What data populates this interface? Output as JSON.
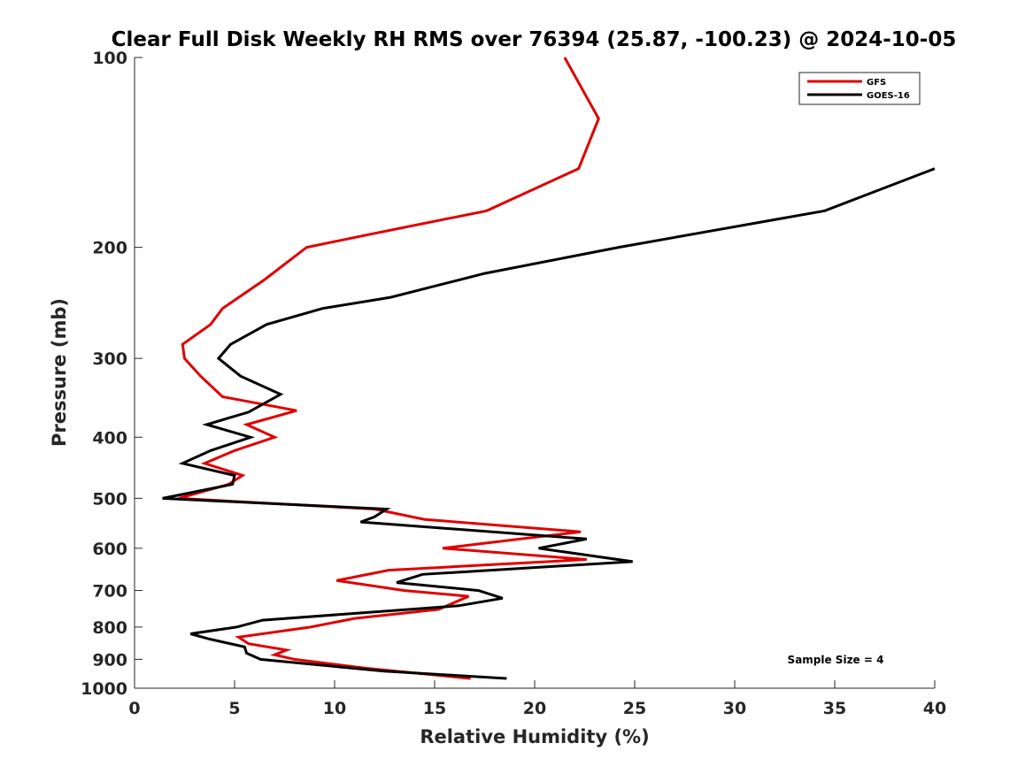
{
  "chart_data": {
    "type": "line",
    "title": "Clear Full Disk Weekly RH RMS over 76394 (25.87, -100.23) @ 2024-10-05",
    "xlabel": "Relative Humidity (%)",
    "ylabel": "Pressure (mb)",
    "xlim": [
      0,
      40
    ],
    "ylim": [
      100,
      1000
    ],
    "yscale": "log",
    "y_reversed": true,
    "xticks": [
      0,
      5,
      10,
      15,
      20,
      25,
      30,
      35,
      40
    ],
    "yticks": [
      100,
      200,
      300,
      400,
      500,
      600,
      700,
      800,
      900,
      1000
    ],
    "grid": false,
    "legend_position": "top-right",
    "annotation": "Sample Size = 4",
    "series": [
      {
        "name": "GFS",
        "color": "#e00000",
        "points": [
          [
            21.5,
            100
          ],
          [
            23.2,
            125
          ],
          [
            22.2,
            150
          ],
          [
            17.6,
            175
          ],
          [
            12.0,
            190
          ],
          [
            8.6,
            200
          ],
          [
            6.5,
            225
          ],
          [
            4.4,
            250
          ],
          [
            3.8,
            265
          ],
          [
            2.4,
            285
          ],
          [
            2.5,
            300
          ],
          [
            3.3,
            320
          ],
          [
            4.4,
            345
          ],
          [
            8.1,
            363
          ],
          [
            5.6,
            382
          ],
          [
            7.0,
            400
          ],
          [
            5.0,
            420
          ],
          [
            3.5,
            440
          ],
          [
            5.4,
            460
          ],
          [
            4.7,
            475
          ],
          [
            2.2,
            500
          ],
          [
            12.0,
            520
          ],
          [
            14.5,
            540
          ],
          [
            22.3,
            565
          ],
          [
            19.3,
            580
          ],
          [
            15.4,
            600
          ],
          [
            22.6,
            625
          ],
          [
            12.7,
            650
          ],
          [
            10.1,
            675
          ],
          [
            13.5,
            700
          ],
          [
            16.7,
            715
          ],
          [
            15.2,
            750
          ],
          [
            11.0,
            775
          ],
          [
            8.8,
            800
          ],
          [
            5.2,
            830
          ],
          [
            5.7,
            850
          ],
          [
            7.6,
            870
          ],
          [
            7.0,
            885
          ],
          [
            8.0,
            900
          ],
          [
            11.6,
            930
          ],
          [
            16.8,
            965
          ]
        ]
      },
      {
        "name": "GOES-16",
        "color": "#000000",
        "points": [
          [
            40.0,
            150
          ],
          [
            34.5,
            175
          ],
          [
            24.2,
            200
          ],
          [
            17.5,
            220
          ],
          [
            12.8,
            240
          ],
          [
            9.4,
            250
          ],
          [
            6.6,
            265
          ],
          [
            4.8,
            285
          ],
          [
            4.2,
            300
          ],
          [
            5.3,
            320
          ],
          [
            7.3,
            342
          ],
          [
            5.7,
            365
          ],
          [
            3.6,
            382
          ],
          [
            5.8,
            400
          ],
          [
            3.8,
            420
          ],
          [
            2.4,
            440
          ],
          [
            5.0,
            460
          ],
          [
            4.9,
            475
          ],
          [
            1.4,
            500
          ],
          [
            12.6,
            520
          ],
          [
            12.0,
            535
          ],
          [
            11.3,
            545
          ],
          [
            22.6,
            580
          ],
          [
            20.2,
            600
          ],
          [
            24.9,
            630
          ],
          [
            14.4,
            660
          ],
          [
            13.1,
            680
          ],
          [
            17.2,
            700
          ],
          [
            18.4,
            720
          ],
          [
            16.2,
            740
          ],
          [
            6.4,
            780
          ],
          [
            5.1,
            800
          ],
          [
            2.8,
            820
          ],
          [
            3.7,
            835
          ],
          [
            5.5,
            860
          ],
          [
            5.6,
            880
          ],
          [
            6.3,
            900
          ],
          [
            12.5,
            940
          ],
          [
            18.6,
            965
          ]
        ]
      }
    ]
  }
}
